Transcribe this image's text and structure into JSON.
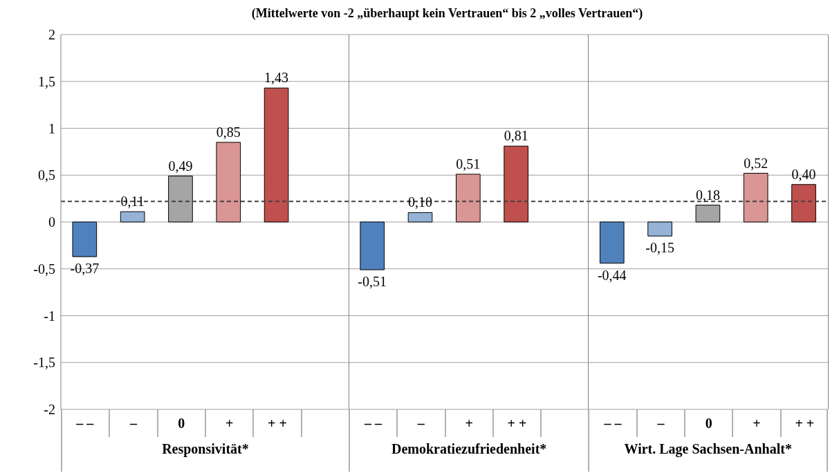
{
  "chart_data": {
    "type": "bar",
    "subtitle": "(Mittelwerte von -2 „überhaupt kein Vertrauen“ bis 2 „volles Vertrauen“)",
    "categories": [
      "– –",
      "–",
      "0",
      "+",
      "+ +",
      null,
      "– –",
      "–",
      "+",
      "+ +",
      null,
      "– –",
      "–",
      "0",
      "+",
      "+ +"
    ],
    "values": [
      -0.37,
      0.11,
      0.49,
      0.85,
      1.43,
      null,
      -0.51,
      0.1,
      0.51,
      0.81,
      null,
      -0.44,
      -0.15,
      0.18,
      0.52,
      0.4
    ],
    "colors": [
      "#4f81bd",
      "#95b3d7",
      "#a5a5a5",
      "#da9694",
      "#c0504d",
      null,
      "#4f81bd",
      "#95b3d7",
      "#da9694",
      "#c0504d",
      null,
      "#4f81bd",
      "#95b3d7",
      "#a5a5a5",
      "#da9694",
      "#c0504d"
    ],
    "value_labels": [
      "-0,37",
      "0,11",
      "0,49",
      "0,85",
      "1,43",
      null,
      "-0,51",
      "0,10",
      "0,51",
      "0,81",
      null,
      "-0,44",
      "-0,15",
      "0,18",
      "0,52",
      "0,40"
    ],
    "annotations": [
      "Responsivität*",
      "Demokratiezufriedenheit*",
      "Wirt. Lage Sachsen-Anhalt*"
    ],
    "ylim": [
      -2,
      2
    ],
    "yticks": [
      {
        "value": -2,
        "label": "-2"
      },
      {
        "value": -1.5,
        "label": "-1,5"
      },
      {
        "value": -1,
        "label": "-1"
      },
      {
        "value": -0.5,
        "label": "-0,5"
      },
      0,
      {
        "value": 0.5,
        "label": "0,5"
      },
      1,
      {
        "value": 1.5,
        "label": "1,5"
      },
      2
    ],
    "ref_lines": [
      {
        "axis": "y",
        "value": 0.22,
        "color": "#404040",
        "line_style": "dashed"
      }
    ],
    "grid": "y"
  }
}
